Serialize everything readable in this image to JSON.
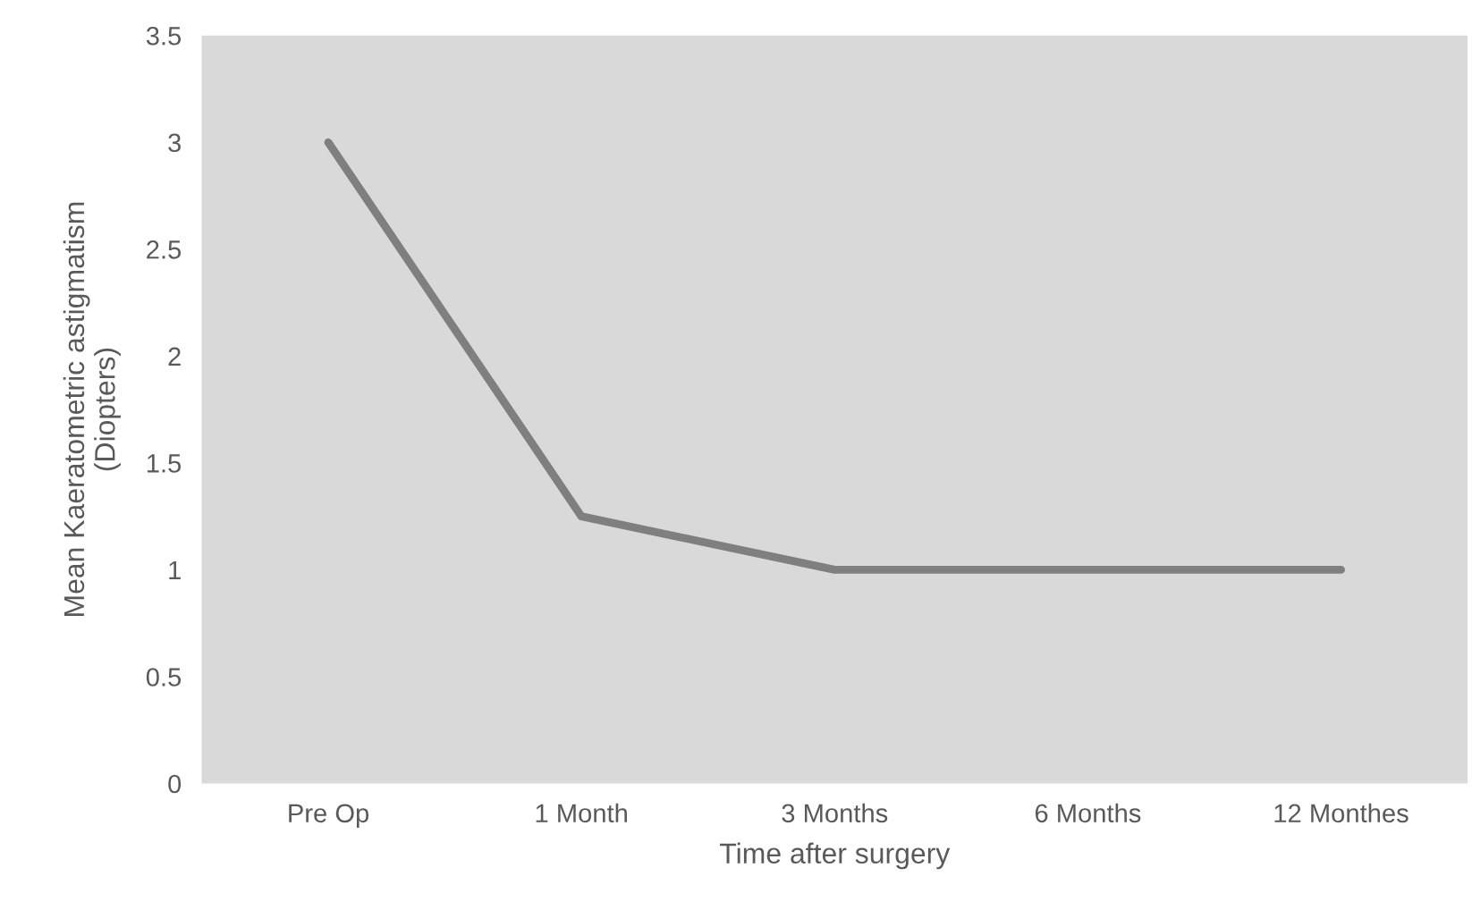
{
  "chart_data": {
    "type": "line",
    "xlabel": "Time after surgery",
    "ylabel": "Mean Kaeratometric astigmatism\n(Diopters)",
    "categories": [
      "Pre Op",
      "1 Month",
      "3 Months",
      "6 Months",
      "12 Monthes"
    ],
    "series": [
      {
        "color": "#7f7f7f",
        "values": [
          3.0,
          1.25,
          1.0,
          1.0,
          1.0
        ]
      }
    ],
    "ylim": [
      0,
      3.5
    ],
    "yticks": [
      0,
      0.5,
      1,
      1.5,
      2,
      2.5,
      3,
      3.5
    ],
    "grid": false,
    "legend": false,
    "marker": "none",
    "line_style": "solid"
  }
}
